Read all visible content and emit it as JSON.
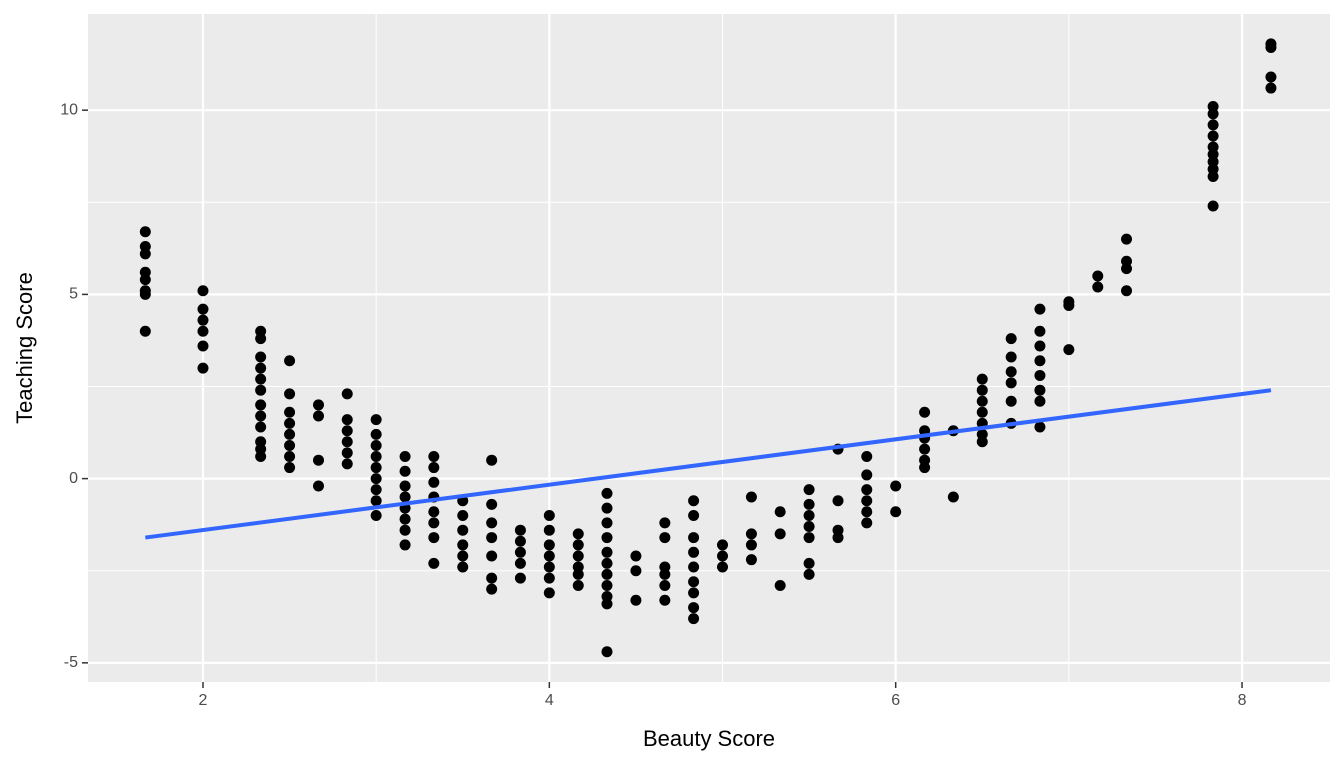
{
  "chart_data": {
    "type": "scatter",
    "x_label": "Beauty Score",
    "y_label": "Teaching Score",
    "xlim": [
      1.336,
      8.508
    ],
    "ylim": [
      -5.52,
      12.61
    ],
    "xticks": [
      2,
      4,
      6,
      8
    ],
    "yticks": [
      -5,
      0,
      5,
      10
    ],
    "x_minor_ticks": [
      3,
      5,
      7
    ],
    "y_minor_ticks": [
      -2.5,
      2.5,
      7.5
    ],
    "grid": true,
    "color": "#000000",
    "x": [
      1.667,
      1.667,
      1.667,
      1.667,
      1.667,
      1.667,
      1.667,
      1.667,
      2,
      2,
      2,
      2,
      2,
      2,
      2.333,
      2.333,
      2.333,
      2.333,
      2.333,
      2.333,
      2.333,
      2.333,
      2.333,
      2.333,
      2.333,
      2.333,
      2.5,
      2.5,
      2.5,
      2.5,
      2.5,
      2.5,
      2.5,
      2.5,
      2.667,
      2.667,
      2.667,
      2.667,
      2.833,
      2.833,
      2.833,
      2.833,
      2.833,
      2.833,
      3,
      3,
      3,
      3,
      3,
      3,
      3,
      3,
      3,
      3.167,
      3.167,
      3.167,
      3.167,
      3.167,
      3.167,
      3.167,
      3.167,
      3.333,
      3.333,
      3.333,
      3.333,
      3.333,
      3.333,
      3.333,
      3.333,
      3.5,
      3.5,
      3.5,
      3.5,
      3.5,
      3.5,
      3.667,
      3.667,
      3.667,
      3.667,
      3.667,
      3.667,
      3.667,
      3.833,
      3.833,
      3.833,
      3.833,
      3.833,
      4,
      4,
      4,
      4,
      4,
      4,
      4,
      4.167,
      4.167,
      4.167,
      4.167,
      4.167,
      4.167,
      4.333,
      4.333,
      4.333,
      4.333,
      4.333,
      4.333,
      4.333,
      4.333,
      4.333,
      4.333,
      4.333,
      4.5,
      4.5,
      4.5,
      4.667,
      4.667,
      4.667,
      4.667,
      4.667,
      4.667,
      4.833,
      4.833,
      4.833,
      4.833,
      4.833,
      4.833,
      4.833,
      4.833,
      4.833,
      5,
      5,
      5,
      5.167,
      5.167,
      5.167,
      5.167,
      5.333,
      5.333,
      5.333,
      5.5,
      5.5,
      5.5,
      5.5,
      5.5,
      5.5,
      5.5,
      5.667,
      5.667,
      5.667,
      5.667,
      5.833,
      5.833,
      5.833,
      5.833,
      5.833,
      5.833,
      6,
      6,
      6.167,
      6.167,
      6.167,
      6.167,
      6.167,
      6.167,
      6.333,
      6.333,
      6.5,
      6.5,
      6.5,
      6.5,
      6.5,
      6.5,
      6.5,
      6.667,
      6.667,
      6.667,
      6.667,
      6.667,
      6.667,
      6.833,
      6.833,
      6.833,
      6.833,
      6.833,
      6.833,
      6.833,
      6.833,
      7,
      7,
      7,
      7.167,
      7.167,
      7.333,
      7.333,
      7.333,
      7.333,
      7.833,
      7.833,
      7.833,
      7.833,
      7.833,
      7.833,
      7.833,
      7.833,
      7.833,
      7.833,
      8.167,
      8.167,
      8.167,
      8.167
    ],
    "values": [
      6.7,
      6.3,
      6.1,
      5.6,
      5.4,
      5.1,
      5.0,
      4.0,
      5.1,
      4.6,
      4.3,
      4.0,
      3.6,
      3.0,
      4.0,
      3.8,
      3.3,
      3.0,
      2.7,
      2.4,
      2.0,
      1.7,
      1.4,
      1.0,
      0.8,
      0.6,
      3.2,
      2.3,
      1.8,
      1.5,
      1.2,
      0.9,
      0.6,
      0.3,
      2.0,
      1.7,
      0.5,
      -0.2,
      2.3,
      1.6,
      1.3,
      1.0,
      0.7,
      0.4,
      1.6,
      1.2,
      0.9,
      0.6,
      0.3,
      0.0,
      -0.3,
      -0.6,
      -1.0,
      0.6,
      0.2,
      -0.2,
      -0.5,
      -0.8,
      -1.1,
      -1.4,
      -1.8,
      0.6,
      0.3,
      -0.1,
      -0.5,
      -0.9,
      -1.2,
      -1.6,
      -2.3,
      -0.6,
      -1.0,
      -1.4,
      -1.8,
      -2.1,
      -2.4,
      0.5,
      -0.7,
      -1.2,
      -1.6,
      -2.1,
      -2.7,
      -3.0,
      -1.4,
      -1.7,
      -2.0,
      -2.3,
      -2.7,
      -1.0,
      -1.4,
      -1.8,
      -2.1,
      -2.4,
      -2.7,
      -3.1,
      -1.5,
      -1.8,
      -2.1,
      -2.4,
      -2.6,
      -2.9,
      -0.4,
      -0.8,
      -1.2,
      -1.6,
      -2.0,
      -2.3,
      -2.6,
      -2.9,
      -3.2,
      -3.4,
      -4.7,
      -2.1,
      -2.5,
      -3.3,
      -1.2,
      -1.6,
      -2.4,
      -2.6,
      -2.9,
      -3.3,
      -0.6,
      -1.0,
      -1.6,
      -2.0,
      -2.4,
      -2.8,
      -3.1,
      -3.5,
      -3.8,
      -1.8,
      -2.1,
      -2.4,
      -0.5,
      -1.5,
      -1.8,
      -2.2,
      -0.9,
      -1.5,
      -2.9,
      -0.3,
      -0.7,
      -1.0,
      -1.3,
      -1.6,
      -2.3,
      -2.6,
      0.8,
      -0.6,
      -1.4,
      -1.6,
      0.6,
      0.1,
      -0.3,
      -0.6,
      -0.9,
      -1.2,
      -0.2,
      -0.9,
      1.8,
      1.3,
      1.1,
      0.8,
      0.5,
      0.3,
      1.3,
      -0.5,
      2.7,
      2.4,
      2.1,
      1.8,
      1.5,
      1.2,
      1.0,
      3.8,
      3.3,
      2.9,
      2.6,
      2.1,
      1.5,
      4.6,
      4.0,
      3.6,
      3.2,
      2.8,
      2.4,
      2.1,
      1.4,
      4.8,
      4.7,
      3.5,
      5.5,
      5.2,
      6.5,
      5.9,
      5.7,
      5.1,
      10.1,
      9.9,
      9.6,
      9.3,
      9.0,
      8.8,
      8.6,
      8.4,
      8.2,
      7.4,
      11.8,
      11.7,
      10.9,
      10.6
    ],
    "trend_line": {
      "x": [
        1.667,
        8.167
      ],
      "values": [
        -1.6,
        2.4
      ],
      "color": "#3366ff"
    }
  }
}
